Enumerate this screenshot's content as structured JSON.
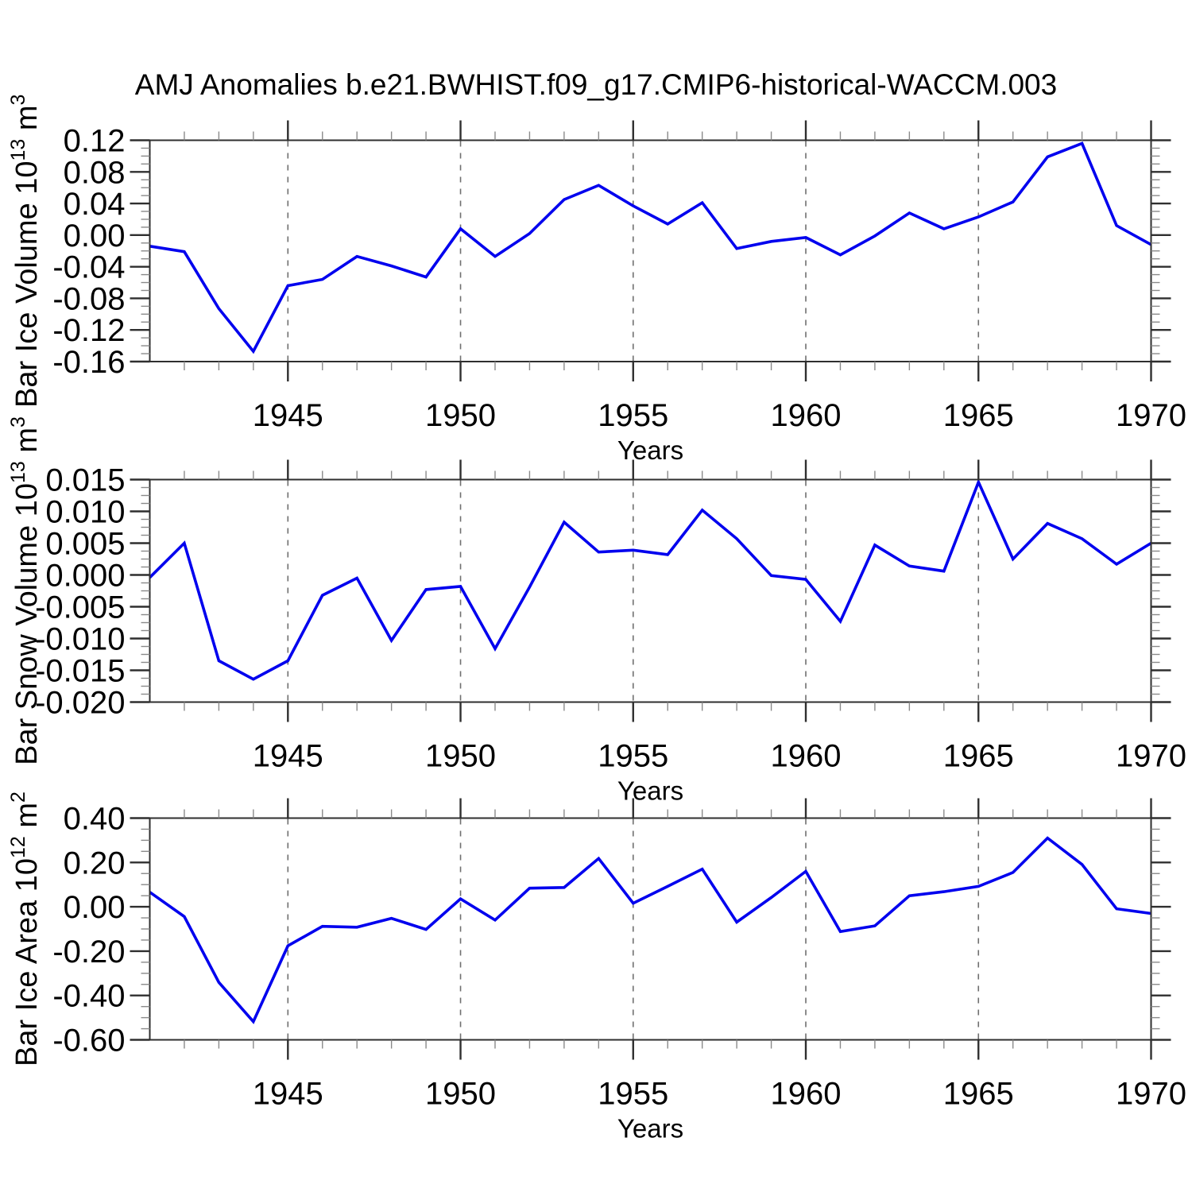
{
  "title": "AMJ Anomalies b.e21.BWHIST.f09_g17.CMIP6-historical-WACCM.003",
  "colors": {
    "line": "#0000ee",
    "axis": "#2f2f2f",
    "minor_tick": "#8a8a8a",
    "grid": "#6f6f6f",
    "text": "#000000",
    "background": "#ffffff"
  },
  "x_axis": {
    "label": "Years",
    "range": [
      1941,
      1970
    ],
    "ticks": [
      1945,
      1950,
      1955,
      1960,
      1965,
      1970
    ],
    "tick_labels": [
      "1945",
      "1950",
      "1955",
      "1960",
      "1965",
      "1970"
    ],
    "grid_years": [
      1945,
      1950,
      1955,
      1960,
      1965
    ],
    "years": [
      1941,
      1942,
      1943,
      1944,
      1945,
      1946,
      1947,
      1948,
      1949,
      1950,
      1951,
      1952,
      1953,
      1954,
      1955,
      1956,
      1957,
      1958,
      1959,
      1960,
      1961,
      1962,
      1963,
      1964,
      1965,
      1966,
      1967,
      1968,
      1969,
      1970
    ]
  },
  "chart_data": [
    {
      "type": "line",
      "name": "ice-volume",
      "ylabel": {
        "text": "Bar Ice Volume 10",
        "exp": "13",
        "unit": "m",
        "unit_exp": "3"
      },
      "ylim": [
        -0.16,
        0.12
      ],
      "yticks": [
        0.12,
        0.08,
        0.04,
        0.0,
        -0.04,
        -0.08,
        -0.12,
        -0.16
      ],
      "ytick_labels": [
        "0.12",
        "0.08",
        "0.04",
        "0.00",
        "-0.04",
        "-0.08",
        "-0.12",
        "-0.16"
      ],
      "yminor_step": 0.01,
      "values": [
        -0.014,
        -0.021,
        -0.093,
        -0.147,
        -0.064,
        -0.056,
        -0.027,
        -0.039,
        -0.053,
        0.008,
        -0.027,
        0.002,
        0.045,
        0.063,
        0.037,
        0.014,
        0.041,
        -0.017,
        -0.008,
        -0.003,
        -0.025,
        -0.001,
        0.028,
        0.008,
        0.023,
        0.042,
        0.099,
        0.116,
        0.012,
        -0.012
      ]
    },
    {
      "type": "line",
      "name": "snow-volume",
      "ylabel": {
        "text": "Bar Snow Volume 10",
        "exp": "13",
        "unit": "m",
        "unit_exp": "3"
      },
      "ylim": [
        -0.02,
        0.015
      ],
      "yticks": [
        0.015,
        0.01,
        0.005,
        0.0,
        -0.005,
        -0.01,
        -0.015,
        -0.02
      ],
      "ytick_labels": [
        "0.015",
        "0.010",
        "0.005",
        "0.000",
        "-0.005",
        "-0.010",
        "-0.015",
        "-0.020"
      ],
      "yminor_step": 0.00125,
      "values": [
        -0.0004,
        0.005,
        -0.0135,
        -0.0164,
        -0.0135,
        -0.0032,
        -0.0005,
        -0.0103,
        -0.0023,
        -0.0018,
        -0.0116,
        -0.0019,
        0.0083,
        0.0036,
        0.0039,
        0.0032,
        0.0102,
        0.0057,
        -0.0001,
        -0.0007,
        -0.0073,
        0.0047,
        0.0014,
        0.0006,
        0.0146,
        0.0025,
        0.0081,
        0.0057,
        0.0017,
        0.005
      ]
    },
    {
      "type": "line",
      "name": "ice-area",
      "ylabel": {
        "text": "Bar Ice Area 10",
        "exp": "12",
        "unit": "m",
        "unit_exp": "2"
      },
      "ylim": [
        -0.6,
        0.4
      ],
      "yticks": [
        0.4,
        0.2,
        0.0,
        -0.2,
        -0.4,
        -0.6
      ],
      "ytick_labels": [
        "0.40",
        "0.20",
        "0.00",
        "-0.20",
        "-0.40",
        "-0.60"
      ],
      "yminor_step": 0.05,
      "values": [
        0.066,
        -0.044,
        -0.341,
        -0.518,
        -0.176,
        -0.088,
        -0.092,
        -0.052,
        -0.102,
        0.036,
        -0.06,
        0.084,
        0.087,
        0.218,
        0.016,
        0.092,
        0.17,
        -0.069,
        0.042,
        0.16,
        -0.112,
        -0.086,
        0.05,
        0.068,
        0.092,
        0.155,
        0.31,
        0.191,
        -0.009,
        -0.03
      ]
    }
  ]
}
